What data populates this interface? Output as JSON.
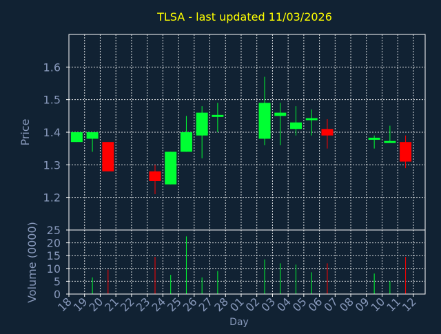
{
  "chart_data": {
    "type": "candlestick",
    "title": "TLSA - last updated 11/03/2026",
    "xlabel": "Day",
    "ylabel": "Price",
    "volume_label": "Volume (0000)",
    "price_ylim": [
      1.1,
      1.7
    ],
    "price_ticks": [
      1.2,
      1.3,
      1.4,
      1.5,
      1.6
    ],
    "volume_ylim": [
      0,
      25
    ],
    "volume_ticks": [
      0,
      5,
      10,
      15,
      20,
      25
    ],
    "grid": true,
    "day_labels": [
      "18",
      "19",
      "20",
      "21",
      "22",
      "23",
      "24",
      "25",
      "26",
      "27",
      "28",
      "01",
      "02",
      "03",
      "04",
      "05",
      "06",
      "07",
      "08",
      "09",
      "10",
      "11",
      "12"
    ],
    "candles": [
      {
        "day": "18",
        "open": 1.37,
        "close": 1.4,
        "high": 1.4,
        "low": 1.37,
        "volume": 0
      },
      {
        "day": "19",
        "open": 1.38,
        "close": 1.4,
        "high": 1.4,
        "low": 1.34,
        "volume": 6.5
      },
      {
        "day": "20",
        "open": 1.37,
        "close": 1.28,
        "high": 1.37,
        "low": 1.28,
        "volume": 9.5
      },
      {
        "day": "23",
        "open": 1.28,
        "close": 1.25,
        "high": 1.3,
        "low": 1.21,
        "volume": 14.5
      },
      {
        "day": "24",
        "open": 1.24,
        "close": 1.34,
        "high": 1.34,
        "low": 1.24,
        "volume": 7.5
      },
      {
        "day": "25",
        "open": 1.34,
        "close": 1.4,
        "high": 1.45,
        "low": 1.34,
        "volume": 22.5
      },
      {
        "day": "26",
        "open": 1.39,
        "close": 1.46,
        "high": 1.48,
        "low": 1.32,
        "volume": 6.5
      },
      {
        "day": "27",
        "open": 1.45,
        "close": 1.45,
        "high": 1.49,
        "low": 1.4,
        "volume": 9
      },
      {
        "day": "02",
        "open": 1.38,
        "close": 1.49,
        "high": 1.57,
        "low": 1.36,
        "volume": 13.5
      },
      {
        "day": "03",
        "open": 1.45,
        "close": 1.46,
        "high": 1.49,
        "low": 1.36,
        "volume": 12
      },
      {
        "day": "04",
        "open": 1.41,
        "close": 1.43,
        "high": 1.48,
        "low": 1.39,
        "volume": 11.5
      },
      {
        "day": "05",
        "open": 1.44,
        "close": 1.44,
        "high": 1.47,
        "low": 1.39,
        "volume": 8.5
      },
      {
        "day": "06",
        "open": 1.41,
        "close": 1.39,
        "high": 1.44,
        "low": 1.35,
        "volume": 12
      },
      {
        "day": "09",
        "open": 1.38,
        "close": 1.38,
        "high": 1.39,
        "low": 1.35,
        "volume": 8
      },
      {
        "day": "10",
        "open": 1.37,
        "close": 1.37,
        "high": 1.42,
        "low": 1.37,
        "volume": 5
      },
      {
        "day": "11",
        "open": 1.37,
        "close": 1.31,
        "high": 1.39,
        "low": 1.29,
        "volume": 14.5
      }
    ],
    "colors": {
      "background": "#112233",
      "up": "#00ff33",
      "down": "#ff0000",
      "title": "#ffff00",
      "axis_text": "#8899bb",
      "frame": "#ffffff",
      "grid": "#ffffff"
    }
  }
}
